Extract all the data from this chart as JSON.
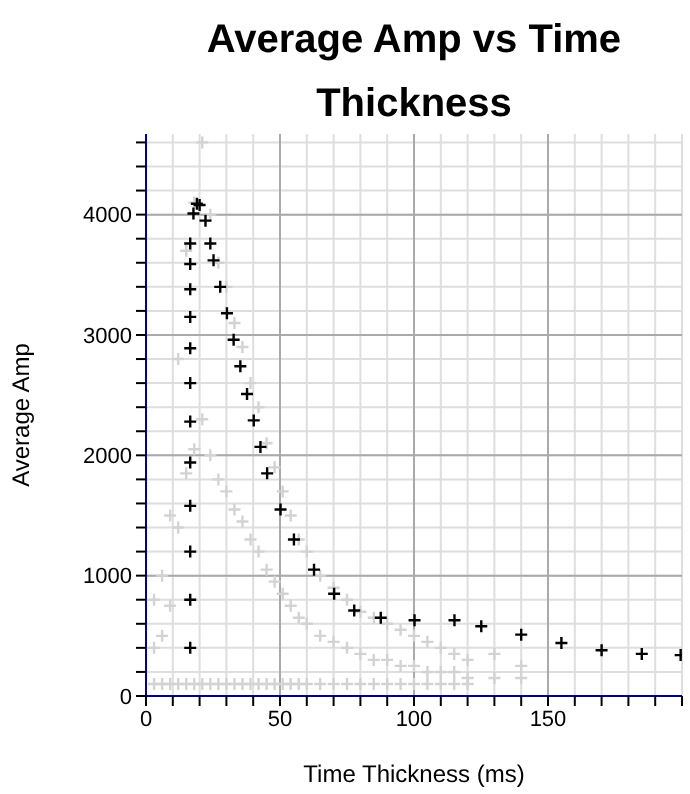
{
  "chart_data": {
    "type": "scatter",
    "title": "Average Amp vs Time Thickness",
    "xlabel": "Time Thickness (ms)",
    "ylabel": "Average Amp",
    "xlim": [
      0,
      200
    ],
    "ylim": [
      0,
      4670
    ],
    "xticks": [
      0,
      {
        "value": 10,
        "label": null
      },
      {
        "value": 20,
        "label": null
      },
      {
        "value": 30,
        "label": null
      },
      {
        "value": 40,
        "label": null
      },
      50,
      {
        "value": 60,
        "label": null
      },
      {
        "value": 70,
        "label": null
      },
      {
        "value": 80,
        "label": null
      },
      {
        "value": 90,
        "label": null
      },
      100,
      {
        "value": 110,
        "label": null
      },
      {
        "value": 120,
        "label": null
      },
      {
        "value": 130,
        "label": null
      },
      {
        "value": 140,
        "label": null
      },
      150,
      {
        "value": 160,
        "label": null
      },
      {
        "value": 170,
        "label": null
      },
      {
        "value": 180,
        "label": null
      },
      {
        "value": 190,
        "label": null
      },
      {
        "value": 200,
        "label": null
      }
    ],
    "yticks": [
      0,
      {
        "value": 200,
        "label": null
      },
      {
        "value": 400,
        "label": null
      },
      {
        "value": 600,
        "label": null
      },
      {
        "value": 800,
        "label": null
      },
      1000,
      {
        "value": 1200,
        "label": null
      },
      {
        "value": 1400,
        "label": null
      },
      {
        "value": 1600,
        "label": null
      },
      {
        "value": 1800,
        "label": null
      },
      2000,
      {
        "value": 2200,
        "label": null
      },
      {
        "value": 2400,
        "label": null
      },
      {
        "value": 2600,
        "label": null
      },
      {
        "value": 2800,
        "label": null
      },
      3000,
      {
        "value": 3200,
        "label": null
      },
      {
        "value": 3400,
        "label": null
      },
      {
        "value": 3600,
        "label": null
      },
      {
        "value": 3800,
        "label": null
      },
      4000,
      {
        "value": 4200,
        "label": null
      },
      {
        "value": 4400,
        "label": null
      },
      {
        "value": 4600,
        "label": null
      }
    ],
    "grid": true,
    "series": [
      {
        "color": "#d3d3d3",
        "marker": "cross",
        "x": [
          3,
          3,
          3,
          6,
          6,
          6,
          9,
          9,
          9,
          12,
          12,
          12,
          15,
          15,
          15,
          18,
          18,
          18,
          21,
          21,
          21,
          24,
          24,
          24,
          27,
          27,
          27,
          30,
          30,
          30,
          33,
          33,
          33,
          36,
          36,
          36,
          39,
          39,
          39,
          42,
          42,
          42,
          45,
          45,
          45,
          48,
          48,
          48,
          51,
          51,
          51,
          54,
          54,
          54,
          57,
          57,
          57,
          60,
          60,
          60,
          65,
          65,
          65,
          70,
          70,
          70,
          75,
          75,
          75,
          80,
          80,
          80,
          85,
          85,
          85,
          90,
          90,
          90,
          95,
          95,
          95,
          100,
          100,
          100,
          105,
          105,
          105,
          110,
          110,
          110,
          115,
          115,
          115,
          120,
          120,
          120,
          130,
          130,
          140,
          140
        ],
        "values": [
          800,
          400,
          100,
          1000,
          500,
          100,
          1500,
          750,
          100,
          2800,
          1400,
          100,
          3700,
          1850,
          100,
          4100,
          2050,
          100,
          4600,
          2300,
          100,
          4000,
          2000,
          100,
          3600,
          1800,
          100,
          3400,
          1700,
          100,
          3100,
          1550,
          100,
          2900,
          1450,
          100,
          2600,
          1300,
          100,
          2400,
          1200,
          100,
          2100,
          1050,
          100,
          1900,
          950,
          100,
          1700,
          850,
          100,
          1500,
          750,
          100,
          1300,
          650,
          100,
          1200,
          600,
          100,
          1000,
          500,
          100,
          900,
          450,
          100,
          800,
          400,
          100,
          700,
          350,
          100,
          650,
          300,
          100,
          600,
          300,
          100,
          550,
          250,
          100,
          500,
          250,
          100,
          450,
          200,
          100,
          400,
          200,
          100,
          350,
          200,
          100,
          300,
          150,
          100,
          350,
          150,
          250,
          150
        ]
      },
      {
        "color": "#000000",
        "marker": "cross",
        "x": [
          16.5,
          16.5,
          16.5,
          16.5,
          16.5,
          16.5,
          16.5,
          16.5,
          16.5,
          16.5,
          16.5,
          16.5,
          17.7,
          19,
          20,
          22.2,
          24,
          25.2,
          27.7,
          30.2,
          32.7,
          35.2,
          37.7,
          40.2,
          42.7,
          45.2,
          50.2,
          55.2,
          62.7,
          70.2,
          77.7,
          87.6,
          100.2,
          115.1,
          125.1,
          140,
          155,
          170,
          185,
          199.5
        ],
        "values": [
          3760,
          3590,
          3380,
          3150,
          2890,
          2600,
          2280,
          1940,
          1580,
          1200,
          800,
          400,
          4010,
          4090,
          4080,
          3950,
          3760,
          3620,
          3400,
          3180,
          2960,
          2740,
          2510,
          2290,
          2070,
          1850,
          1550,
          1300,
          1050,
          850,
          710,
          650,
          630,
          630,
          580,
          510,
          440,
          380,
          350,
          340
        ]
      }
    ]
  }
}
